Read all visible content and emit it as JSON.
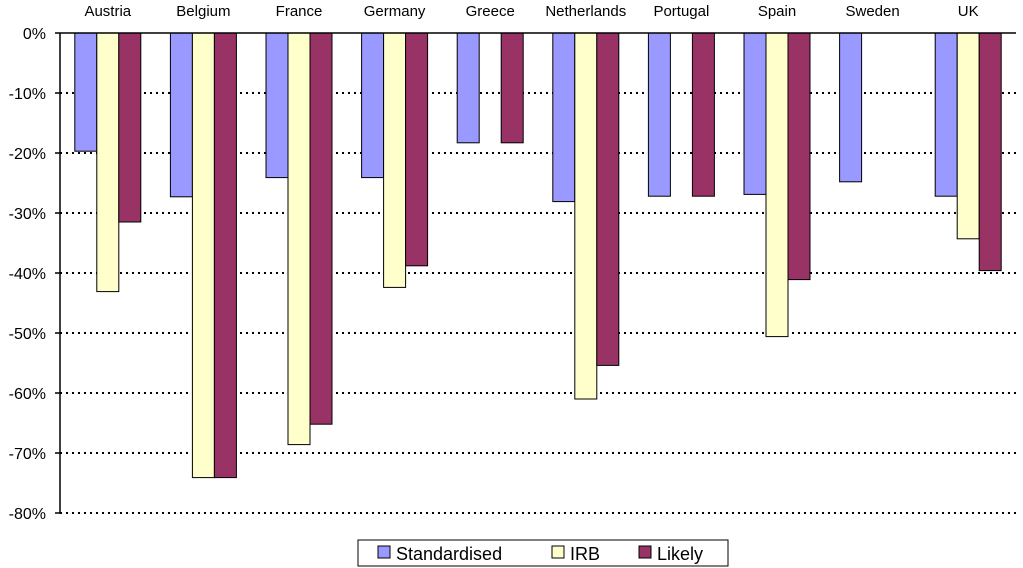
{
  "chart_data": {
    "type": "bar",
    "title": "",
    "xlabel": "",
    "ylabel": "",
    "categories": [
      "Austria",
      "Belgium",
      "France",
      "Germany",
      "Greece",
      "Netherlands",
      "Portugal",
      "Spain",
      "Sweden",
      "UK"
    ],
    "series": [
      {
        "name": "Standardised",
        "color": "#9999ff",
        "values": [
          -19.7,
          -27.3,
          -24.1,
          -24.1,
          -18.3,
          -28.1,
          -27.2,
          -26.9,
          -24.8,
          -27.2
        ]
      },
      {
        "name": "IRB",
        "color": "#ffffcc",
        "values": [
          -43.1,
          -74.1,
          -68.6,
          -42.4,
          null,
          -61.0,
          null,
          -50.6,
          null,
          -34.3
        ]
      },
      {
        "name": "Likely",
        "color": "#993366",
        "values": [
          -31.5,
          -74.1,
          -65.2,
          -38.8,
          -18.3,
          -55.4,
          -27.2,
          -41.1,
          null,
          -39.6
        ]
      }
    ],
    "ylim": [
      -80,
      0
    ],
    "yticks": [
      0,
      -10,
      -20,
      -30,
      -40,
      -50,
      -60,
      -70,
      -80
    ],
    "ytick_labels": [
      "0%",
      "-10%",
      "-20%",
      "-30%",
      "-40%",
      "-50%",
      "-60%",
      "-70%",
      "-80%"
    ],
    "grid": "horizontal dotted",
    "legend_position": "bottom"
  }
}
